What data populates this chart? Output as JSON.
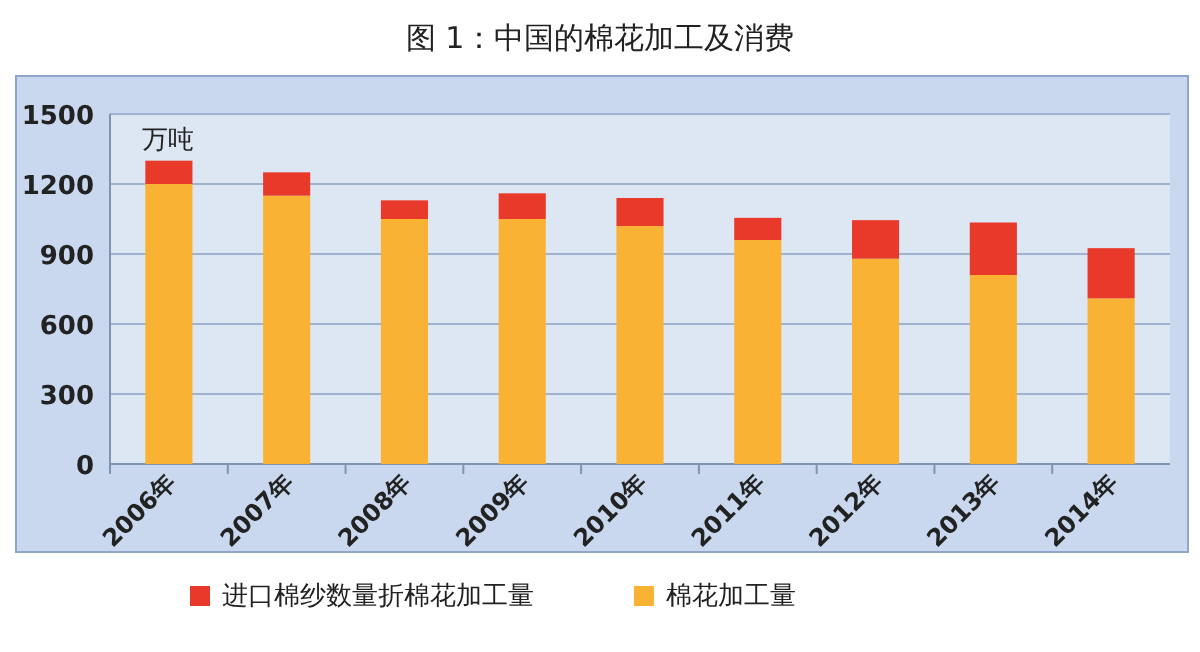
{
  "chart_data": {
    "type": "bar",
    "title": "图 1：中国的棉花加工及消费",
    "annotations": [
      "万吨"
    ],
    "categories": [
      "2006年",
      "2007年",
      "2008年",
      "2009年",
      "2010年",
      "2011年",
      "2012年",
      "2013年",
      "2014年"
    ],
    "stacked": true,
    "series": [
      {
        "name": "棉花加工量",
        "color": "#f9b233",
        "values": [
          1200,
          1150,
          1050,
          1050,
          1020,
          960,
          880,
          810,
          710
        ]
      },
      {
        "name": "进口棉纱数量折棉花加工量",
        "color": "#e8392a",
        "values": [
          100,
          100,
          80,
          110,
          120,
          95,
          165,
          225,
          215
        ]
      }
    ],
    "ylim": [
      0,
      1500
    ],
    "yticks": [
      0,
      300,
      600,
      900,
      1200,
      1500
    ],
    "grid": "y",
    "legend": "bottom"
  }
}
